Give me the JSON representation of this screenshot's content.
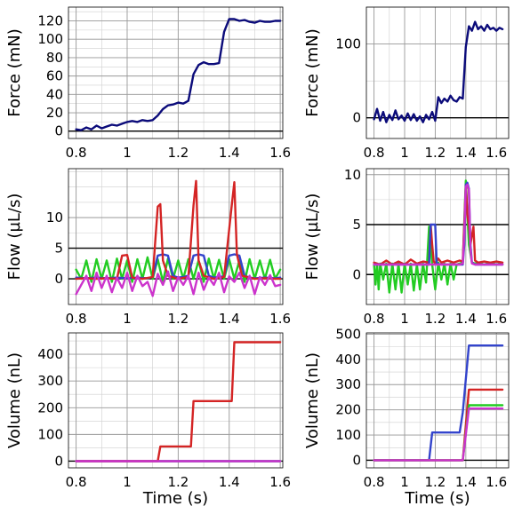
{
  "colors": {
    "navy": "#0b0b7a",
    "red": "#d42424",
    "blue": "#3344cc",
    "green": "#22cc22",
    "magenta": "#cc33cc"
  },
  "chart_data": [
    {
      "type": "line",
      "title": "",
      "xlabel": "",
      "ylabel": "Force (mN)",
      "xlim": [
        0.77,
        1.61
      ],
      "ylim": [
        -8,
        135
      ],
      "xticks": [
        "0.8",
        "1",
        "1.2",
        "1.4",
        "1.6"
      ],
      "yticks": [
        "0",
        "20",
        "40",
        "60",
        "80",
        "100",
        "120"
      ],
      "grid": true,
      "series": [
        {
          "color": "#0b0b7a",
          "x": [
            0.8,
            0.82,
            0.84,
            0.86,
            0.88,
            0.9,
            0.92,
            0.94,
            0.96,
            0.98,
            1.0,
            1.02,
            1.04,
            1.06,
            1.08,
            1.1,
            1.12,
            1.14,
            1.16,
            1.18,
            1.2,
            1.22,
            1.24,
            1.26,
            1.28,
            1.3,
            1.32,
            1.34,
            1.36,
            1.38,
            1.4,
            1.42,
            1.44,
            1.46,
            1.48,
            1.5,
            1.52,
            1.54,
            1.56,
            1.58,
            1.6
          ],
          "y": [
            2,
            1,
            4,
            2,
            6,
            3,
            5,
            7,
            6,
            8,
            10,
            11,
            10,
            12,
            11,
            12,
            17,
            24,
            28,
            29,
            31,
            30,
            33,
            62,
            72,
            75,
            73,
            73,
            74,
            108,
            122,
            122,
            120,
            121,
            119,
            118,
            120,
            119,
            119,
            120,
            120
          ]
        }
      ]
    },
    {
      "type": "line",
      "title": "",
      "xlabel": "",
      "ylabel": "Force (mN)",
      "xlim": [
        0.75,
        1.68
      ],
      "ylim": [
        -28,
        150
      ],
      "xticks": [
        "0.8",
        "1",
        "1.2",
        "1.4",
        "1.6"
      ],
      "yticks": [
        "0",
        "100"
      ],
      "grid": true,
      "series": [
        {
          "color": "#0b0b7a",
          "x": [
            0.8,
            0.82,
            0.84,
            0.86,
            0.88,
            0.9,
            0.92,
            0.94,
            0.96,
            0.98,
            1.0,
            1.02,
            1.04,
            1.06,
            1.08,
            1.1,
            1.12,
            1.14,
            1.16,
            1.18,
            1.2,
            1.22,
            1.24,
            1.26,
            1.28,
            1.3,
            1.32,
            1.34,
            1.36,
            1.38,
            1.4,
            1.42,
            1.44,
            1.46,
            1.48,
            1.5,
            1.52,
            1.54,
            1.56,
            1.58,
            1.6,
            1.62,
            1.64
          ],
          "y": [
            -2,
            12,
            -4,
            8,
            -6,
            4,
            -3,
            10,
            -2,
            3,
            -4,
            6,
            -3,
            5,
            -4,
            2,
            -6,
            4,
            -2,
            8,
            -4,
            28,
            20,
            26,
            22,
            30,
            24,
            22,
            28,
            26,
            96,
            124,
            118,
            130,
            120,
            124,
            118,
            126,
            120,
            122,
            118,
            122,
            120
          ]
        }
      ]
    },
    {
      "type": "line",
      "title": "",
      "xlabel": "",
      "ylabel": "Flow (µL/s)",
      "xlim": [
        0.77,
        1.61
      ],
      "ylim": [
        -4.2,
        18
      ],
      "xticks": [
        "0.8",
        "1",
        "1.2",
        "1.4",
        "1.6"
      ],
      "yticks": [
        "0",
        "5",
        "10"
      ],
      "hline": 5,
      "grid": true,
      "series": [
        {
          "color": "#22cc22",
          "x": [
            0.8,
            0.82,
            0.84,
            0.86,
            0.88,
            0.9,
            0.92,
            0.94,
            0.96,
            0.98,
            1.0,
            1.02,
            1.04,
            1.06,
            1.08,
            1.1,
            1.12,
            1.14,
            1.16,
            1.18,
            1.2,
            1.22,
            1.24,
            1.26,
            1.28,
            1.3,
            1.32,
            1.34,
            1.36,
            1.38,
            1.4,
            1.42,
            1.44,
            1.46,
            1.48,
            1.5,
            1.52,
            1.54,
            1.56,
            1.58,
            1.6
          ],
          "y": [
            1.5,
            0,
            3,
            -0.5,
            3.2,
            0,
            3,
            -0.5,
            3.3,
            0,
            3,
            -0.5,
            3.2,
            0,
            3.5,
            0,
            3.2,
            -0.5,
            3.3,
            0,
            3,
            0,
            3.2,
            0,
            3,
            -0.5,
            3.3,
            0,
            3.1,
            0,
            3.2,
            0,
            3,
            -0.5,
            3.2,
            0,
            3,
            0,
            3.1,
            0,
            1.5
          ]
        },
        {
          "color": "#3344cc",
          "x": [
            0.8,
            0.84,
            0.88,
            0.92,
            0.96,
            1.0,
            1.04,
            1.08,
            1.1,
            1.12,
            1.14,
            1.16,
            1.18,
            1.2,
            1.22,
            1.24,
            1.26,
            1.28,
            1.3,
            1.32,
            1.34,
            1.36,
            1.38,
            1.4,
            1.42,
            1.44,
            1.46,
            1.48,
            1.5,
            1.54,
            1.58,
            1.6
          ],
          "y": [
            0.2,
            0.1,
            0.2,
            0.1,
            0.2,
            0.1,
            0.2,
            0.1,
            0.3,
            3.8,
            4,
            3.8,
            0.5,
            0.2,
            0.3,
            0.5,
            3.8,
            4,
            3.8,
            0.5,
            0.2,
            0.3,
            0.4,
            3.8,
            4,
            3.8,
            0.5,
            0.2,
            0.1,
            0.2,
            0.1,
            0.2
          ]
        },
        {
          "color": "#d42424",
          "x": [
            0.8,
            0.84,
            0.88,
            0.92,
            0.96,
            0.98,
            1.0,
            1.02,
            1.06,
            1.1,
            1.12,
            1.13,
            1.14,
            1.16,
            1.2,
            1.24,
            1.26,
            1.27,
            1.28,
            1.3,
            1.34,
            1.38,
            1.41,
            1.42,
            1.43,
            1.45,
            1.5,
            1.54,
            1.58,
            1.6
          ],
          "y": [
            0,
            0.1,
            0,
            0.1,
            0,
            3.8,
            3.9,
            0.2,
            0,
            0.3,
            11.8,
            12.2,
            3,
            0.5,
            0,
            0.3,
            12,
            16,
            3,
            0.5,
            0,
            0.3,
            12,
            15.8,
            4,
            0.5,
            0,
            0.1,
            0,
            0
          ]
        },
        {
          "color": "#cc33cc",
          "x": [
            0.8,
            0.82,
            0.84,
            0.86,
            0.88,
            0.9,
            0.92,
            0.94,
            0.96,
            0.98,
            1.0,
            1.02,
            1.04,
            1.06,
            1.08,
            1.1,
            1.12,
            1.14,
            1.16,
            1.18,
            1.2,
            1.22,
            1.24,
            1.26,
            1.28,
            1.3,
            1.32,
            1.34,
            1.36,
            1.38,
            1.4,
            1.42,
            1.44,
            1.46,
            1.48,
            1.5,
            1.52,
            1.54,
            1.56,
            1.58,
            1.6
          ],
          "y": [
            -2.5,
            -1,
            0.5,
            -2,
            1,
            -1.5,
            0.5,
            -2.2,
            0.2,
            -1.5,
            1,
            -2,
            0.5,
            -1.2,
            -0.5,
            -2.8,
            0.8,
            -1,
            1.2,
            -2,
            0.3,
            -1,
            0.5,
            -2.5,
            1,
            -1.8,
            0.2,
            -1,
            1,
            -2.2,
            0.4,
            -0.5,
            1,
            -1.5,
            0.5,
            -2.5,
            0.3,
            -1,
            0.6,
            -1.2,
            -1
          ]
        }
      ]
    },
    {
      "type": "line",
      "title": "",
      "xlabel": "",
      "ylabel": "Flow (µL/s)",
      "xlim": [
        0.75,
        1.68
      ],
      "ylim": [
        -3,
        10.6
      ],
      "xticks": [
        "0.8",
        "1",
        "1.2",
        "1.4",
        "1.6"
      ],
      "yticks": [
        "0",
        "5",
        "10"
      ],
      "hline": 5,
      "grid": true,
      "series": [
        {
          "color": "#22cc22",
          "x": [
            0.8,
            0.81,
            0.82,
            0.83,
            0.84,
            0.86,
            0.88,
            0.9,
            0.92,
            0.94,
            0.96,
            0.98,
            1.0,
            1.02,
            1.04,
            1.06,
            1.08,
            1.1,
            1.12,
            1.14,
            1.16,
            1.18,
            1.2,
            1.22,
            1.24,
            1.26,
            1.28,
            1.3,
            1.32,
            1.34,
            1.36,
            1.38,
            1.4,
            1.42,
            1.44,
            1.46,
            1.48,
            1.5,
            1.52,
            1.54,
            1.56,
            1.58,
            1.6,
            1.62,
            1.64
          ],
          "y": [
            1,
            -1,
            1.1,
            -1.5,
            1.1,
            -0.5,
            1.1,
            -1.8,
            1.1,
            -1.5,
            1.1,
            -1.8,
            1.1,
            -1,
            1.1,
            -1.6,
            1,
            -1.5,
            1.1,
            -0.8,
            4.8,
            1,
            -1.5,
            1.2,
            -0.5,
            1.1,
            -1,
            1.1,
            -0.5,
            1,
            1.1,
            1.2,
            9.4,
            3,
            1.2,
            1.1,
            1.2,
            1.1,
            1,
            1.1,
            1.2,
            1.1,
            1,
            1.1,
            1
          ]
        },
        {
          "color": "#d42424",
          "x": [
            0.8,
            0.84,
            0.88,
            0.92,
            0.96,
            1.0,
            1.04,
            1.08,
            1.12,
            1.16,
            1.17,
            1.18,
            1.19,
            1.2,
            1.22,
            1.24,
            1.28,
            1.32,
            1.36,
            1.38,
            1.39,
            1.4,
            1.41,
            1.42,
            1.43,
            1.45,
            1.46,
            1.48,
            1.52,
            1.56,
            1.6,
            1.64
          ],
          "y": [
            1.2,
            1,
            1.4,
            1,
            1.3,
            1,
            1.5,
            1.1,
            1.3,
            1.2,
            5,
            3,
            1.3,
            1.1,
            1.6,
            1.2,
            1.4,
            1.2,
            1.4,
            1.3,
            5,
            9,
            6,
            5,
            3,
            4.8,
            1.4,
            1.2,
            1.3,
            1.2,
            1.3,
            1.2
          ]
        },
        {
          "color": "#3344cc",
          "x": [
            0.8,
            0.84,
            0.88,
            0.92,
            0.96,
            1.0,
            1.04,
            1.08,
            1.12,
            1.16,
            1.17,
            1.2,
            1.21,
            1.24,
            1.28,
            1.32,
            1.36,
            1.38,
            1.39,
            1.4,
            1.41,
            1.42,
            1.43,
            1.44,
            1.46,
            1.5,
            1.54,
            1.58,
            1.62,
            1.64
          ],
          "y": [
            1,
            1,
            1,
            1,
            1,
            1,
            1,
            1,
            1,
            1,
            5,
            5,
            1.1,
            1,
            1,
            1,
            1,
            1,
            3,
            9,
            9.2,
            8.6,
            3,
            1.2,
            1,
            1,
            1,
            1,
            1,
            1
          ]
        },
        {
          "color": "#cc33cc",
          "x": [
            0.8,
            0.84,
            0.88,
            0.92,
            0.96,
            1.0,
            1.04,
            1.08,
            1.12,
            1.16,
            1.2,
            1.24,
            1.28,
            1.32,
            1.36,
            1.38,
            1.39,
            1.4,
            1.41,
            1.42,
            1.43,
            1.44,
            1.46,
            1.5,
            1.54,
            1.58,
            1.62,
            1.64
          ],
          "y": [
            1,
            1,
            1,
            1,
            1,
            1,
            1,
            1,
            1,
            1,
            1,
            1,
            1,
            1,
            1,
            1.1,
            4,
            8.8,
            9,
            8.5,
            2.5,
            1.1,
            1,
            1,
            1,
            1,
            1,
            1
          ]
        }
      ]
    },
    {
      "type": "line",
      "title": "",
      "xlabel": "Time (s)",
      "ylabel": "Volume (nL)",
      "xlim": [
        0.77,
        1.61
      ],
      "ylim": [
        -25,
        480
      ],
      "xticks": [
        "0.8",
        "1",
        "1.2",
        "1.4",
        "1.6"
      ],
      "yticks": [
        "0",
        "100",
        "200",
        "300",
        "400"
      ],
      "grid": true,
      "series": [
        {
          "color": "#22cc22",
          "x": [
            0.8,
            1.6
          ],
          "y": [
            0,
            0
          ]
        },
        {
          "color": "#3344cc",
          "x": [
            0.8,
            1.6
          ],
          "y": [
            0,
            0
          ]
        },
        {
          "color": "#d42424",
          "x": [
            0.8,
            1.12,
            1.13,
            1.25,
            1.26,
            1.41,
            1.42,
            1.6
          ],
          "y": [
            0,
            0,
            55,
            55,
            225,
            225,
            445,
            445
          ]
        },
        {
          "color": "#cc33cc",
          "x": [
            0.8,
            1.6
          ],
          "y": [
            0,
            0
          ]
        }
      ]
    },
    {
      "type": "line",
      "title": "",
      "xlabel": "Time (s)",
      "ylabel": "Volume (nL)",
      "xlim": [
        0.75,
        1.68
      ],
      "ylim": [
        -30,
        505
      ],
      "xticks": [
        "0.8",
        "1",
        "1.2",
        "1.4",
        "1.6"
      ],
      "yticks": [
        "0",
        "100",
        "200",
        "300",
        "400",
        "500"
      ],
      "grid": true,
      "series": [
        {
          "color": "#3344cc",
          "x": [
            0.8,
            1.16,
            1.18,
            1.36,
            1.38,
            1.42,
            1.64
          ],
          "y": [
            0,
            0,
            110,
            110,
            190,
            455,
            455
          ]
        },
        {
          "color": "#d42424",
          "x": [
            0.8,
            1.38,
            1.42,
            1.64
          ],
          "y": [
            0,
            0,
            280,
            280
          ]
        },
        {
          "color": "#22cc22",
          "x": [
            0.8,
            1.38,
            1.42,
            1.64
          ],
          "y": [
            0,
            0,
            218,
            218
          ]
        },
        {
          "color": "#cc33cc",
          "x": [
            0.8,
            1.38,
            1.42,
            1.64
          ],
          "y": [
            0,
            0,
            205,
            205
          ]
        }
      ]
    }
  ]
}
